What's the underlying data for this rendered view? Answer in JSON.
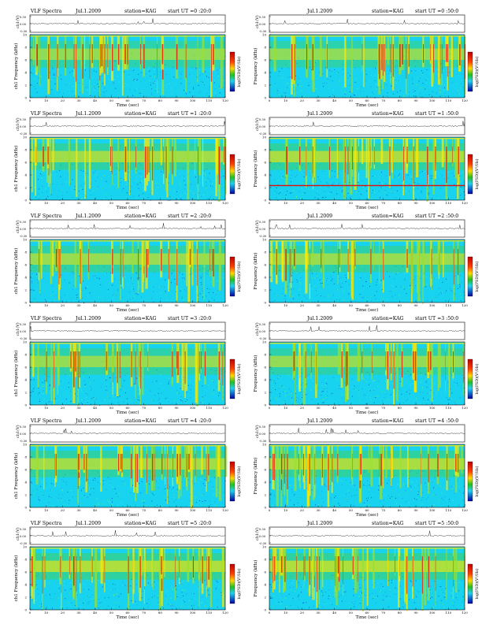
{
  "figure_label": "VLF Spectra",
  "date": "Jul.1.2009",
  "station": "station=KAG",
  "colors": {
    "background": "#18d3f0",
    "cb_top": "#c00000",
    "cb_mid": "#ffd800",
    "cb_green": "#20c020",
    "cb_bottom": "#0000a0",
    "burst_red": "#e01010",
    "burst_yellow": "#ffe800",
    "ch_line": "#333333"
  },
  "chart_data": [
    {
      "type": "heatmap",
      "header": "start UT =0 :20:0",
      "show_figure_label": true,
      "ylabel": "ch1 Frequency (kHz)",
      "xlabel": "Time (sec)",
      "trace_label": "ch1(V)",
      "colorbar_label": "log(PSD)(V²/Hz)",
      "xlim": [
        0,
        120
      ],
      "ylim": [
        0,
        10
      ],
      "xticks": [
        0,
        10,
        20,
        30,
        40,
        50,
        60,
        70,
        80,
        90,
        100,
        110,
        120
      ],
      "yticks": [
        0,
        2,
        4,
        6,
        8,
        10
      ],
      "intensity": 0.55,
      "seed": 11
    },
    {
      "type": "heatmap",
      "header": "start UT =0 :50:0",
      "show_figure_label": false,
      "ylabel": "Frequency (kHz)",
      "xlabel": "Time (sec)",
      "trace_label": "ch1(V)",
      "colorbar_label": "log(PSD)(V²/Hz)",
      "xlim": [
        0,
        120
      ],
      "ylim": [
        0,
        10
      ],
      "xticks": [
        0,
        10,
        20,
        30,
        40,
        50,
        60,
        70,
        80,
        90,
        100,
        110,
        120
      ],
      "yticks": [
        0,
        2,
        4,
        6,
        8,
        10
      ],
      "intensity": 0.55,
      "seed": 23
    },
    {
      "type": "heatmap",
      "header": "start UT =1 :20:0",
      "show_figure_label": true,
      "ylabel": "ch1 Frequency (kHz)",
      "xlabel": "Time (sec)",
      "trace_label": "ch1(V)",
      "colorbar_label": "log(PSD)(V²/Hz)",
      "xlim": [
        0,
        120
      ],
      "ylim": [
        0,
        10
      ],
      "xticks": [
        0,
        10,
        20,
        30,
        40,
        50,
        60,
        70,
        80,
        90,
        100,
        110,
        120
      ],
      "yticks": [
        0,
        2,
        4,
        6,
        8,
        10
      ],
      "intensity": 0.75,
      "seed": 37
    },
    {
      "type": "heatmap",
      "header": "start UT =1 :50:0",
      "show_figure_label": false,
      "ylabel": "Frequency (kHz)",
      "xlabel": "Time (sec)",
      "trace_label": "ch1(V)",
      "colorbar_label": "log(PSD)(V²/Hz)",
      "xlim": [
        0,
        120
      ],
      "ylim": [
        0,
        10
      ],
      "xticks": [
        0,
        10,
        20,
        30,
        40,
        50,
        60,
        70,
        80,
        90,
        100,
        110,
        120
      ],
      "yticks": [
        0,
        2,
        4,
        6,
        8,
        10
      ],
      "intensity": 0.85,
      "seed": 41,
      "line_khz": 2.4
    },
    {
      "type": "heatmap",
      "header": "start UT =2 :20:0",
      "show_figure_label": true,
      "ylabel": "ch1 Frequency (kHz)",
      "xlabel": "Time (sec)",
      "trace_label": "ch1(V)",
      "colorbar_label": "log(PSD)(V²/Hz)",
      "xlim": [
        0,
        120
      ],
      "ylim": [
        0,
        10
      ],
      "xticks": [
        0,
        10,
        20,
        30,
        40,
        50,
        60,
        70,
        80,
        90,
        100,
        110,
        120
      ],
      "yticks": [
        0,
        2,
        4,
        6,
        8,
        10
      ],
      "intensity": 0.65,
      "seed": 53
    },
    {
      "type": "heatmap",
      "header": "start UT =2 :50:0",
      "show_figure_label": false,
      "ylabel": "Frequency (kHz)",
      "xlabel": "Time (sec)",
      "trace_label": "ch1(V)",
      "colorbar_label": "log(PSD)(V²/Hz)",
      "xlim": [
        0,
        120
      ],
      "ylim": [
        0,
        10
      ],
      "xticks": [
        0,
        10,
        20,
        30,
        40,
        50,
        60,
        70,
        80,
        90,
        100,
        110,
        120
      ],
      "yticks": [
        0,
        2,
        4,
        6,
        8,
        10
      ],
      "intensity": 0.65,
      "seed": 67
    },
    {
      "type": "heatmap",
      "header": "start UT =3 :20:0",
      "show_figure_label": true,
      "ylabel": "ch1 Frequency (kHz)",
      "xlabel": "Time (sec)",
      "trace_label": "ch1(V)",
      "colorbar_label": "log(PSD)(V²/Hz)",
      "xlim": [
        0,
        120
      ],
      "ylim": [
        0,
        10
      ],
      "xticks": [
        0,
        10,
        20,
        30,
        40,
        50,
        60,
        70,
        80,
        90,
        100,
        110,
        120
      ],
      "yticks": [
        0,
        2,
        4,
        6,
        8,
        10
      ],
      "intensity": 0.6,
      "seed": 71
    },
    {
      "type": "heatmap",
      "header": "start UT =3 :50:0",
      "show_figure_label": false,
      "ylabel": "Frequency (kHz)",
      "xlabel": "Time (sec)",
      "trace_label": "ch1(V)",
      "colorbar_label": "log(PSD)(V²/Hz)",
      "xlim": [
        0,
        120
      ],
      "ylim": [
        0,
        10
      ],
      "xticks": [
        0,
        10,
        20,
        30,
        40,
        50,
        60,
        70,
        80,
        90,
        100,
        110,
        120
      ],
      "yticks": [
        0,
        2,
        4,
        6,
        8,
        10
      ],
      "intensity": 0.6,
      "seed": 83
    },
    {
      "type": "heatmap",
      "header": "start UT =4 :20:0",
      "show_figure_label": true,
      "ylabel": "ch1 Frequency (kHz)",
      "xlabel": "Time (sec)",
      "trace_label": "ch1(V)",
      "colorbar_label": "log(PSD)(V²/Hz)",
      "xlim": [
        0,
        120
      ],
      "ylim": [
        0,
        10
      ],
      "xticks": [
        0,
        10,
        20,
        30,
        40,
        50,
        60,
        70,
        80,
        90,
        100,
        110,
        120
      ],
      "yticks": [
        0,
        2,
        4,
        6,
        8,
        10
      ],
      "intensity": 0.75,
      "seed": 97
    },
    {
      "type": "heatmap",
      "header": "start UT =4 :50:0",
      "show_figure_label": false,
      "ylabel": "Frequency (kHz)",
      "xlabel": "Time (sec)",
      "trace_label": "ch1(V)",
      "colorbar_label": "log(PSD)(V²/Hz)",
      "xlim": [
        0,
        120
      ],
      "ylim": [
        0,
        10
      ],
      "xticks": [
        0,
        10,
        20,
        30,
        40,
        50,
        60,
        70,
        80,
        90,
        100,
        110,
        120
      ],
      "yticks": [
        0,
        2,
        4,
        6,
        8,
        10
      ],
      "intensity": 0.85,
      "seed": 101
    },
    {
      "type": "heatmap",
      "header": "start UT =5 :20:0",
      "show_figure_label": true,
      "ylabel": "ch1 Frequency (kHz)",
      "xlabel": "Time (sec)",
      "trace_label": "ch1(V)",
      "colorbar_label": "log(PSD)(V²/Hz)",
      "xlim": [
        0,
        120
      ],
      "ylim": [
        0,
        10
      ],
      "xticks": [
        0,
        10,
        20,
        30,
        40,
        50,
        60,
        70,
        80,
        90,
        100,
        110,
        120
      ],
      "yticks": [
        0,
        2,
        4,
        6,
        8,
        10
      ],
      "intensity": 0.9,
      "seed": 113
    },
    {
      "type": "heatmap",
      "header": "start UT =5 :50:0",
      "show_figure_label": false,
      "ylabel": "Frequency (kHz)",
      "xlabel": "Time (sec)",
      "trace_label": "ch1(V)",
      "colorbar_label": "log(PSD)(V²/Hz)",
      "xlim": [
        0,
        120
      ],
      "ylim": [
        0,
        10
      ],
      "xticks": [
        0,
        10,
        20,
        30,
        40,
        50,
        60,
        70,
        80,
        90,
        100,
        110,
        120
      ],
      "yticks": [
        0,
        2,
        4,
        6,
        8,
        10
      ],
      "intensity": 0.9,
      "seed": 127
    }
  ]
}
